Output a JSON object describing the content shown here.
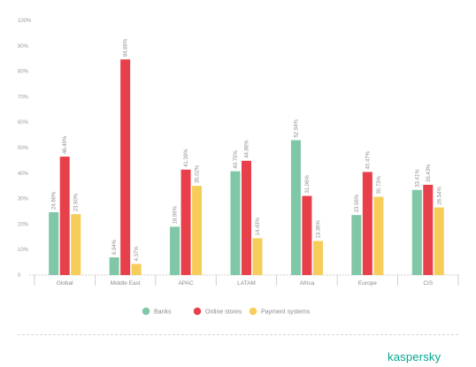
{
  "chart_data": {
    "type": "bar",
    "categories": [
      "Global",
      "Middle East",
      "APAC",
      "LATAM",
      "Africa",
      "Europe",
      "CIS"
    ],
    "series": [
      {
        "name": "Banks",
        "color": "#7fc7a6",
        "values": [
          24.66,
          6.94,
          18.96,
          40.75,
          52.94,
          23.56,
          33.41
        ],
        "labels": [
          "24.66%",
          "6.94%",
          "18.96%",
          "40.75%",
          "52.94%",
          "23.56%",
          "33.41%"
        ]
      },
      {
        "name": "Online stores",
        "color": "#e8404a",
        "values": [
          46.49,
          84.66,
          41.39,
          44.86,
          31.06,
          40.47,
          35.43
        ],
        "labels": [
          "46.49%",
          "84.66%",
          "41.39%",
          "44.86%",
          "31.06%",
          "40.47%",
          "35.43%"
        ]
      },
      {
        "name": "Payment systems",
        "color": "#f6cd58",
        "values": [
          23.9,
          4.37,
          35.02,
          14.43,
          13.36,
          30.73,
          26.54
        ],
        "labels": [
          "23.90%",
          "4.37%",
          "35.02%",
          "14.43%",
          "13.36%",
          "30.73%",
          "26.54%"
        ]
      }
    ],
    "ylim": [
      0,
      100
    ],
    "yticks": [
      "0",
      "10%",
      "20%",
      "30%",
      "40%",
      "50%",
      "60%",
      "70%",
      "80%",
      "90%",
      "100%"
    ],
    "legend_position": "bottom-center",
    "grid": false
  },
  "brand": {
    "logo_text": "kaspersky",
    "color": "#00a88e"
  }
}
